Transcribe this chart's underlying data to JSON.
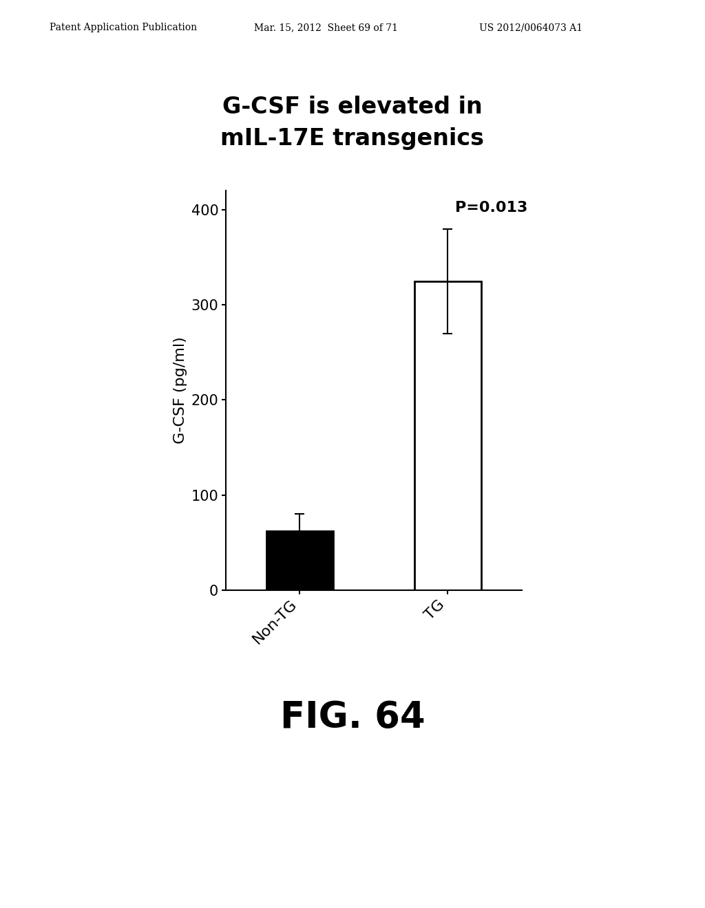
{
  "title_line1": "G-CSF is elevated in",
  "title_line2": "mIL-17E transgenics",
  "categories": [
    "Non-TG",
    "TG"
  ],
  "values": [
    62,
    325
  ],
  "errors": [
    18,
    55
  ],
  "bar_colors": [
    "black",
    "white"
  ],
  "bar_edgecolors": [
    "black",
    "black"
  ],
  "ylabel": "G-CSF (pg/ml)",
  "ylim": [
    0,
    420
  ],
  "yticks": [
    0,
    100,
    200,
    300,
    400
  ],
  "pvalue_text": "P=0.013",
  "fig_label": "FIG. 64",
  "header_left": "Patent Application Publication",
  "header_mid": "Mar. 15, 2012  Sheet 69 of 71",
  "header_right": "US 2012/0064073 A1",
  "background_color": "#ffffff",
  "title_fontsize": 24,
  "axis_fontsize": 16,
  "tick_fontsize": 15,
  "fig_label_fontsize": 38,
  "header_fontsize": 10,
  "pvalue_fontsize": 16
}
